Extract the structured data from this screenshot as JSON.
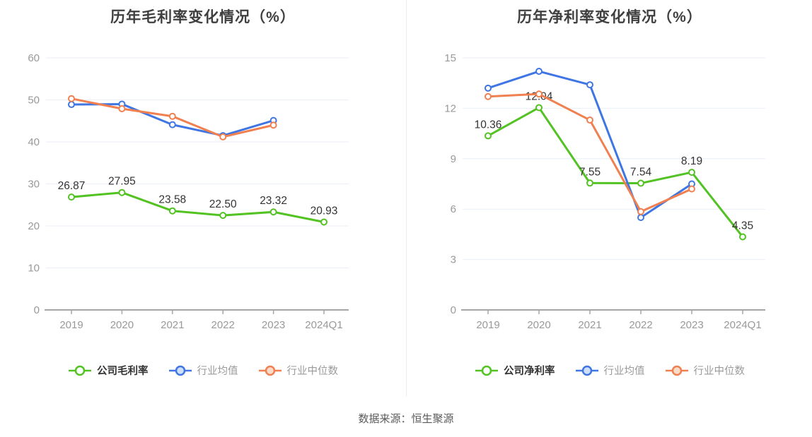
{
  "footer": {
    "source_note": "数据来源：恒生聚源"
  },
  "colors": {
    "company": "#53c223",
    "mean": "#3f76e4",
    "median": "#f08050",
    "company_legend_fill": "#ffffff",
    "mean_legend_fill": "#cfdff8",
    "median_legend_fill": "#fbdccb",
    "grid": "#e9eef7",
    "axis": "#a6a6a6",
    "tick_text": "#999999",
    "data_label_text": "#333333",
    "title_text": "#3f3f3f"
  },
  "chart_data": [
    {
      "type": "line",
      "title": "历年毛利率变化情况（%）",
      "xlabel": "",
      "ylabel": "",
      "legend_position": "bottom",
      "grid": true,
      "categories": [
        "2019",
        "2020",
        "2021",
        "2022",
        "2023",
        "2024Q1"
      ],
      "y_ticks": [
        0,
        10,
        20,
        30,
        40,
        50,
        60
      ],
      "ylim": [
        0,
        60
      ],
      "series": [
        {
          "name": "公司毛利率",
          "color_key": "company",
          "values": [
            26.87,
            27.95,
            23.58,
            22.5,
            23.32,
            20.93
          ],
          "labels": [
            "26.87",
            "27.95",
            "23.58",
            "22.50",
            "23.32",
            "20.93"
          ]
        },
        {
          "name": "行业均值",
          "color_key": "mean",
          "values": [
            48.9,
            49.0,
            44.1,
            41.5,
            45.1
          ]
        },
        {
          "name": "行业中位数",
          "color_key": "median",
          "values": [
            50.3,
            47.9,
            46.1,
            41.2,
            44.0
          ]
        }
      ]
    },
    {
      "type": "line",
      "title": "历年净利率变化情况（%）",
      "xlabel": "",
      "ylabel": "",
      "legend_position": "bottom",
      "grid": true,
      "categories": [
        "2019",
        "2020",
        "2021",
        "2022",
        "2023",
        "2024Q1"
      ],
      "y_ticks": [
        0,
        3,
        6,
        9,
        12,
        15
      ],
      "ylim": [
        0,
        15
      ],
      "series": [
        {
          "name": "公司净利率",
          "color_key": "company",
          "values": [
            10.36,
            12.04,
            7.55,
            7.54,
            8.19,
            4.35
          ],
          "labels": [
            "10.36",
            "12.04",
            "7.55",
            "7.54",
            "8.19",
            "4.35"
          ]
        },
        {
          "name": "行业均值",
          "color_key": "mean",
          "values": [
            13.2,
            14.2,
            13.4,
            5.5,
            7.5
          ]
        },
        {
          "name": "行业中位数",
          "color_key": "median",
          "values": [
            12.7,
            12.85,
            11.3,
            5.85,
            7.2
          ]
        }
      ]
    }
  ]
}
